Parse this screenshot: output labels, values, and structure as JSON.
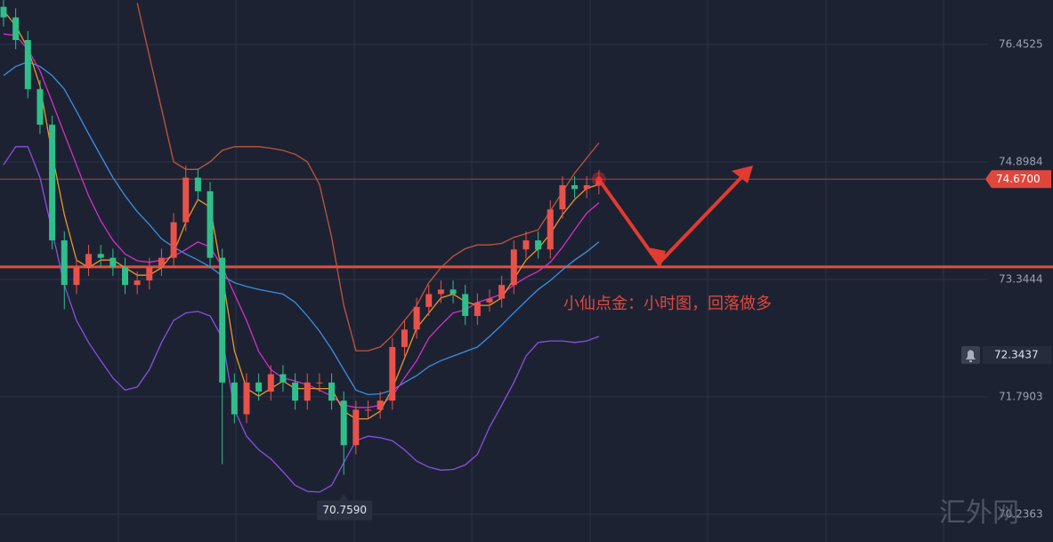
{
  "chart_data": {
    "type": "candlestick",
    "open": [
      76.95,
      76.81,
      76.51,
      75.86,
      75.39,
      73.86,
      73.27,
      73.51,
      73.68,
      73.63,
      73.51,
      73.27,
      73.33,
      73.51,
      73.63,
      74.1,
      74.69,
      74.51,
      73.63,
      71.98,
      71.56,
      71.98,
      71.86,
      72.09,
      71.98,
      71.74,
      71.98,
      71.98,
      71.74,
      71.15,
      71.62,
      71.62,
      71.74,
      72.45,
      72.68,
      72.98,
      73.15,
      73.21,
      73.15,
      72.86,
      73.04,
      73.09,
      73.27,
      73.74,
      73.86,
      73.74,
      74.27,
      74.59,
      74.54,
      74.59
    ],
    "high": [
      77.07,
      76.93,
      76.63,
      75.98,
      75.51,
      73.98,
      73.63,
      73.8,
      73.8,
      73.75,
      73.63,
      73.45,
      73.63,
      73.75,
      74.22,
      74.85,
      74.81,
      74.63,
      73.75,
      72.1,
      72.1,
      72.1,
      72.21,
      72.21,
      72.1,
      72.1,
      72.1,
      72.1,
      71.86,
      71.74,
      71.74,
      71.86,
      72.57,
      72.8,
      73.1,
      73.27,
      73.33,
      73.33,
      73.27,
      73.16,
      73.21,
      73.39,
      73.86,
      73.98,
      73.98,
      74.39,
      74.71,
      74.71,
      74.71,
      74.79
    ],
    "low": [
      76.69,
      76.39,
      75.74,
      75.27,
      73.74,
      72.95,
      73.15,
      73.39,
      73.51,
      73.39,
      73.15,
      73.15,
      73.21,
      73.39,
      73.51,
      73.98,
      74.39,
      73.51,
      70.9,
      71.44,
      71.44,
      71.74,
      71.74,
      71.86,
      71.62,
      71.62,
      71.86,
      71.62,
      70.759,
      71.03,
      71.5,
      71.5,
      71.62,
      72.33,
      72.56,
      72.86,
      73.03,
      73.03,
      72.74,
      72.74,
      72.92,
      72.97,
      73.15,
      73.62,
      73.62,
      73.62,
      74.15,
      74.42,
      74.42,
      74.47
    ],
    "close": [
      76.81,
      76.51,
      75.86,
      75.39,
      73.86,
      73.27,
      73.51,
      73.68,
      73.63,
      73.51,
      73.27,
      73.33,
      73.51,
      73.63,
      74.1,
      74.69,
      74.51,
      73.63,
      71.98,
      71.56,
      71.98,
      71.86,
      72.09,
      71.98,
      71.74,
      71.98,
      71.98,
      71.74,
      71.15,
      71.62,
      71.62,
      71.74,
      72.45,
      72.68,
      72.98,
      73.15,
      73.21,
      73.15,
      72.86,
      73.04,
      73.09,
      73.27,
      73.74,
      73.86,
      73.74,
      74.27,
      74.59,
      74.54,
      74.59,
      74.67
    ],
    "up_color": "#e8524a",
    "down_color": "#2fbf8a",
    "lines": [
      {
        "color": "#c0553a",
        "values": [
          null,
          null,
          null,
          null,
          null,
          null,
          null,
          null,
          null,
          null,
          null,
          77.0,
          76.3,
          75.6,
          74.9,
          74.8,
          74.8,
          74.9,
          75.05,
          75.1,
          75.1,
          75.1,
          75.08,
          75.05,
          75.0,
          74.9,
          74.6,
          73.9,
          73.0,
          72.4,
          72.4,
          72.45,
          72.6,
          72.8,
          73.0,
          73.3,
          73.5,
          73.65,
          73.75,
          73.8,
          73.8,
          73.82,
          73.9,
          73.95,
          74.0,
          74.25,
          74.5,
          74.75,
          74.95,
          75.15
        ]
      },
      {
        "color": "#8a4fe0",
        "values": [
          74.86,
          75.1,
          75.1,
          74.69,
          73.98,
          73.27,
          72.8,
          72.51,
          72.27,
          72.04,
          71.88,
          71.92,
          72.15,
          72.51,
          72.8,
          72.9,
          72.92,
          72.86,
          72.57,
          71.62,
          71.27,
          71.09,
          70.97,
          70.8,
          70.62,
          70.54,
          70.53,
          70.62,
          70.92,
          71.21,
          71.27,
          71.25,
          71.21,
          71.09,
          70.94,
          70.86,
          70.82,
          70.83,
          70.89,
          71.03,
          71.39,
          71.68,
          71.98,
          72.33,
          72.51,
          72.53,
          72.53,
          72.51,
          72.53,
          72.59
        ]
      },
      {
        "color": "#3b8fe0",
        "values": [
          76.04,
          76.16,
          76.22,
          76.16,
          76.04,
          75.86,
          75.57,
          75.27,
          74.98,
          74.69,
          74.45,
          74.24,
          74.07,
          73.88,
          73.77,
          73.68,
          73.6,
          73.51,
          73.39,
          73.3,
          73.25,
          73.21,
          73.18,
          73.15,
          73.04,
          72.86,
          72.66,
          72.42,
          72.15,
          71.88,
          71.82,
          71.83,
          71.88,
          71.98,
          72.07,
          72.19,
          72.27,
          72.33,
          72.39,
          72.45,
          72.59,
          72.74,
          72.9,
          73.06,
          73.21,
          73.33,
          73.47,
          73.6,
          73.71,
          73.84
        ]
      },
      {
        "color": "#d42fc8",
        "values": [
          76.59,
          76.57,
          76.39,
          76.1,
          75.69,
          75.27,
          74.86,
          74.45,
          74.12,
          73.86,
          73.68,
          73.59,
          73.57,
          73.6,
          73.65,
          73.74,
          73.84,
          73.77,
          73.51,
          73.15,
          72.8,
          72.39,
          72.15,
          72.04,
          72.0,
          71.95,
          71.88,
          71.8,
          71.68,
          71.65,
          71.65,
          71.68,
          71.8,
          72.04,
          72.27,
          72.57,
          72.74,
          72.9,
          72.94,
          73.04,
          73.09,
          73.15,
          73.27,
          73.37,
          73.45,
          73.57,
          73.77,
          74.0,
          74.22,
          74.36
        ]
      },
      {
        "color": "#e8962a",
        "values": [
          76.9,
          76.7,
          76.4,
          75.9,
          75.0,
          74.2,
          73.6,
          73.5,
          73.6,
          73.6,
          73.5,
          73.4,
          73.4,
          73.5,
          73.7,
          74.1,
          74.4,
          74.3,
          73.4,
          72.4,
          71.9,
          71.8,
          71.9,
          72.0,
          71.9,
          71.9,
          71.9,
          71.9,
          71.6,
          71.5,
          71.5,
          71.6,
          71.9,
          72.3,
          72.7,
          72.9,
          73.1,
          73.15,
          73.05,
          73.0,
          73.0,
          73.1,
          73.35,
          73.6,
          73.75,
          73.95,
          74.2,
          74.4,
          74.55,
          74.6
        ]
      }
    ],
    "ylim": [
      69.87,
      77.04
    ],
    "yticks": [
      76.4525,
      74.8984,
      73.3444,
      71.7903,
      70.2363
    ],
    "grid": true,
    "support_line": {
      "value": 73.51,
      "color": "#e0503c"
    },
    "last_price": {
      "value": 74.67,
      "label": "74.6700"
    },
    "alert_price": 72.3437,
    "low_marker": {
      "value": 70.759,
      "label": "70.7590"
    },
    "annotation": "小仙点金：小时图，回落做多",
    "watermark": "汇外网"
  }
}
